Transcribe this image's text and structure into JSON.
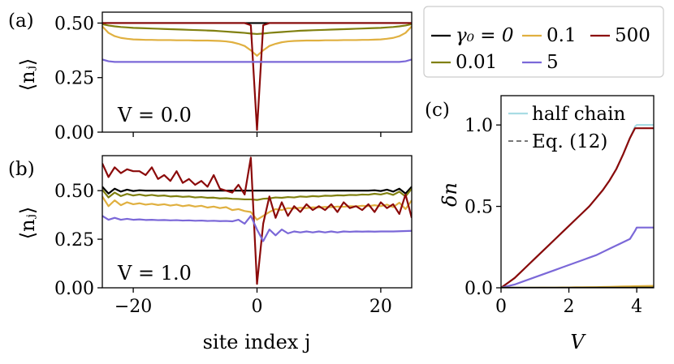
{
  "figure": {
    "legend": {
      "entries": [
        {
          "label": "γ₀ = 0",
          "color": "#000000"
        },
        {
          "label": "0.1",
          "color": "#e0b040"
        },
        {
          "label": "500",
          "color": "#8b0a0a"
        },
        {
          "label": "0.01",
          "color": "#808010"
        },
        {
          "label": "5",
          "color": "#7b68d8"
        }
      ]
    }
  },
  "chart_data": [
    {
      "id": "a",
      "type": "line",
      "panel_label": "(a)",
      "annotation": "V = 0.0",
      "ylabel": "⟨nⱼ⟩",
      "xlabel": "",
      "xlim": [
        -25,
        25
      ],
      "ylim": [
        0.0,
        0.55
      ],
      "xticks": [
        -20,
        0,
        20
      ],
      "yticks": [
        0.0,
        0.25,
        0.5
      ],
      "yticklabels": [
        "0.00",
        "0.25",
        "0.50"
      ],
      "x": [
        -25,
        -24,
        -23,
        -22,
        -21,
        -20,
        -19,
        -18,
        -17,
        -16,
        -15,
        -14,
        -13,
        -12,
        -11,
        -10,
        -9,
        -8,
        -7,
        -6,
        -5,
        -4,
        -3,
        -2,
        -1,
        0,
        1,
        2,
        3,
        4,
        5,
        6,
        7,
        8,
        9,
        10,
        11,
        12,
        13,
        14,
        15,
        16,
        17,
        18,
        19,
        20,
        21,
        22,
        23,
        24,
        25
      ],
      "series": [
        {
          "name": "γ₀ = 0",
          "color": "#000000",
          "values": [
            0.5,
            0.5,
            0.5,
            0.5,
            0.5,
            0.5,
            0.5,
            0.5,
            0.5,
            0.5,
            0.5,
            0.5,
            0.5,
            0.5,
            0.5,
            0.5,
            0.5,
            0.5,
            0.5,
            0.5,
            0.5,
            0.5,
            0.5,
            0.5,
            0.5,
            0.5,
            0.5,
            0.5,
            0.5,
            0.5,
            0.5,
            0.5,
            0.5,
            0.5,
            0.5,
            0.5,
            0.5,
            0.5,
            0.5,
            0.5,
            0.5,
            0.5,
            0.5,
            0.5,
            0.5,
            0.5,
            0.5,
            0.5,
            0.5,
            0.5,
            0.5
          ]
        },
        {
          "name": "0.01",
          "color": "#808010",
          "values": [
            0.495,
            0.489,
            0.485,
            0.482,
            0.48,
            0.478,
            0.477,
            0.476,
            0.475,
            0.474,
            0.473,
            0.472,
            0.471,
            0.47,
            0.469,
            0.468,
            0.467,
            0.466,
            0.465,
            0.463,
            0.461,
            0.459,
            0.457,
            0.455,
            0.452,
            0.45,
            0.452,
            0.455,
            0.457,
            0.459,
            0.461,
            0.463,
            0.465,
            0.466,
            0.467,
            0.468,
            0.469,
            0.47,
            0.471,
            0.472,
            0.473,
            0.474,
            0.475,
            0.476,
            0.477,
            0.478,
            0.48,
            0.482,
            0.485,
            0.489,
            0.495
          ]
        },
        {
          "name": "0.1",
          "color": "#e0b040",
          "values": [
            0.485,
            0.455,
            0.44,
            0.432,
            0.428,
            0.425,
            0.424,
            0.423,
            0.423,
            0.422,
            0.422,
            0.422,
            0.421,
            0.421,
            0.421,
            0.42,
            0.42,
            0.42,
            0.419,
            0.418,
            0.416,
            0.412,
            0.405,
            0.395,
            0.375,
            0.35,
            0.375,
            0.395,
            0.405,
            0.412,
            0.416,
            0.418,
            0.419,
            0.42,
            0.42,
            0.42,
            0.421,
            0.421,
            0.421,
            0.422,
            0.422,
            0.422,
            0.423,
            0.423,
            0.424,
            0.425,
            0.428,
            0.432,
            0.44,
            0.455,
            0.485
          ]
        },
        {
          "name": "500",
          "color": "#8b0a0a",
          "values": [
            0.5,
            0.5,
            0.5,
            0.5,
            0.5,
            0.5,
            0.5,
            0.5,
            0.5,
            0.5,
            0.5,
            0.5,
            0.5,
            0.5,
            0.5,
            0.5,
            0.5,
            0.5,
            0.5,
            0.5,
            0.5,
            0.5,
            0.5,
            0.5,
            0.49,
            0.01,
            0.49,
            0.5,
            0.5,
            0.5,
            0.5,
            0.5,
            0.5,
            0.5,
            0.5,
            0.5,
            0.5,
            0.5,
            0.5,
            0.5,
            0.5,
            0.5,
            0.5,
            0.5,
            0.5,
            0.5,
            0.5,
            0.5,
            0.5,
            0.5,
            0.5
          ]
        },
        {
          "name": "5",
          "color": "#7b68d8",
          "values": [
            0.333,
            0.325,
            0.322,
            0.322,
            0.322,
            0.322,
            0.322,
            0.322,
            0.322,
            0.322,
            0.322,
            0.322,
            0.322,
            0.322,
            0.322,
            0.322,
            0.322,
            0.322,
            0.322,
            0.322,
            0.322,
            0.322,
            0.322,
            0.322,
            0.322,
            0.322,
            0.322,
            0.322,
            0.322,
            0.322,
            0.322,
            0.322,
            0.322,
            0.322,
            0.322,
            0.322,
            0.322,
            0.322,
            0.322,
            0.322,
            0.322,
            0.322,
            0.322,
            0.322,
            0.322,
            0.322,
            0.322,
            0.322,
            0.322,
            0.325,
            0.333
          ]
        }
      ]
    },
    {
      "id": "b",
      "type": "line",
      "panel_label": "(b)",
      "annotation": "V = 1.0",
      "ylabel": "⟨nⱼ⟩",
      "xlabel": "site index j",
      "xlim": [
        -25,
        25
      ],
      "ylim": [
        0.0,
        0.68
      ],
      "xticks": [
        -20,
        0,
        20
      ],
      "xticklabels": [
        "−20",
        "0",
        "20"
      ],
      "yticks": [
        0.0,
        0.25,
        0.5
      ],
      "yticklabels": [
        "0.00",
        "0.25",
        "0.50"
      ],
      "x": [
        -25,
        -24,
        -23,
        -22,
        -21,
        -20,
        -19,
        -18,
        -17,
        -16,
        -15,
        -14,
        -13,
        -12,
        -11,
        -10,
        -9,
        -8,
        -7,
        -6,
        -5,
        -4,
        -3,
        -2,
        -1,
        0,
        1,
        2,
        3,
        4,
        5,
        6,
        7,
        8,
        9,
        10,
        11,
        12,
        13,
        14,
        15,
        16,
        17,
        18,
        19,
        20,
        21,
        22,
        23,
        24,
        25
      ],
      "series": [
        {
          "name": "γ₀ = 0",
          "color": "#000000",
          "values": [
            0.52,
            0.485,
            0.51,
            0.495,
            0.505,
            0.498,
            0.502,
            0.5,
            0.5,
            0.5,
            0.5,
            0.5,
            0.5,
            0.5,
            0.5,
            0.5,
            0.5,
            0.5,
            0.5,
            0.5,
            0.5,
            0.5,
            0.5,
            0.5,
            0.5,
            0.5,
            0.5,
            0.5,
            0.5,
            0.5,
            0.5,
            0.5,
            0.5,
            0.5,
            0.5,
            0.5,
            0.5,
            0.5,
            0.5,
            0.5,
            0.5,
            0.5,
            0.5,
            0.5,
            0.502,
            0.498,
            0.505,
            0.495,
            0.51,
            0.485,
            0.52
          ]
        },
        {
          "name": "0.01",
          "color": "#808010",
          "values": [
            0.505,
            0.465,
            0.49,
            0.472,
            0.483,
            0.475,
            0.48,
            0.474,
            0.478,
            0.473,
            0.475,
            0.47,
            0.472,
            0.468,
            0.47,
            0.465,
            0.467,
            0.463,
            0.464,
            0.46,
            0.461,
            0.458,
            0.457,
            0.455,
            0.455,
            0.452,
            0.458,
            0.46,
            0.465,
            0.463,
            0.467,
            0.465,
            0.47,
            0.468,
            0.472,
            0.47,
            0.474,
            0.473,
            0.476,
            0.475,
            0.478,
            0.477,
            0.48,
            0.479,
            0.484,
            0.48,
            0.488,
            0.478,
            0.495,
            0.47,
            0.51
          ]
        },
        {
          "name": "0.1",
          "color": "#e0b040",
          "values": [
            0.47,
            0.42,
            0.45,
            0.425,
            0.44,
            0.43,
            0.435,
            0.428,
            0.432,
            0.426,
            0.43,
            0.423,
            0.428,
            0.42,
            0.425,
            0.418,
            0.422,
            0.413,
            0.418,
            0.41,
            0.415,
            0.4,
            0.405,
            0.395,
            0.39,
            0.35,
            0.37,
            0.39,
            0.405,
            0.4,
            0.41,
            0.408,
            0.412,
            0.41,
            0.414,
            0.413,
            0.416,
            0.415,
            0.418,
            0.417,
            0.42,
            0.419,
            0.422,
            0.42,
            0.425,
            0.42,
            0.428,
            0.415,
            0.438,
            0.405,
            0.45
          ]
        },
        {
          "name": "500",
          "color": "#8b0a0a",
          "values": [
            0.64,
            0.57,
            0.62,
            0.59,
            0.61,
            0.6,
            0.6,
            0.58,
            0.62,
            0.56,
            0.58,
            0.55,
            0.6,
            0.54,
            0.56,
            0.53,
            0.55,
            0.52,
            0.58,
            0.51,
            0.5,
            0.49,
            0.53,
            0.48,
            0.67,
            0.02,
            0.33,
            0.47,
            0.36,
            0.44,
            0.37,
            0.42,
            0.39,
            0.43,
            0.4,
            0.42,
            0.4,
            0.43,
            0.39,
            0.44,
            0.41,
            0.42,
            0.4,
            0.43,
            0.39,
            0.44,
            0.41,
            0.43,
            0.38,
            0.48,
            0.36
          ]
        },
        {
          "name": "5",
          "color": "#7b68d8",
          "values": [
            0.37,
            0.35,
            0.36,
            0.35,
            0.355,
            0.35,
            0.352,
            0.349,
            0.35,
            0.348,
            0.349,
            0.347,
            0.348,
            0.346,
            0.347,
            0.345,
            0.346,
            0.344,
            0.345,
            0.343,
            0.344,
            0.342,
            0.35,
            0.33,
            0.37,
            0.3,
            0.24,
            0.3,
            0.27,
            0.3,
            0.28,
            0.29,
            0.285,
            0.29,
            0.285,
            0.29,
            0.285,
            0.29,
            0.285,
            0.29,
            0.288,
            0.29,
            0.289,
            0.29,
            0.289,
            0.29,
            0.29,
            0.29,
            0.291,
            0.292,
            0.293
          ]
        }
      ]
    },
    {
      "id": "c",
      "type": "line",
      "panel_label": "(c)",
      "ylabel": "δn",
      "xlabel": "V",
      "xlim": [
        0,
        4.5
      ],
      "ylim": [
        0.0,
        1.18
      ],
      "xticks": [
        0,
        2,
        4
      ],
      "yticks": [
        0.0,
        0.5,
        1.0
      ],
      "yticklabels": [
        "0.0",
        "0.5",
        "1.0"
      ],
      "legend": [
        {
          "label": "half chain",
          "color": "#a8dce4",
          "dash": "solid"
        },
        {
          "label": "Eq. (12)",
          "color": "#777777",
          "dash": "dashed"
        }
      ],
      "x": [
        0.0,
        0.2,
        0.4,
        0.6,
        0.8,
        1.0,
        1.2,
        1.4,
        1.6,
        1.8,
        2.0,
        2.2,
        2.4,
        2.6,
        2.8,
        3.0,
        3.2,
        3.4,
        3.6,
        3.8,
        3.95,
        4.0,
        4.5
      ],
      "series": [
        {
          "name": "half chain",
          "color": "#a8dce4",
          "dash": "solid",
          "values": [
            0.0,
            0.03,
            0.06,
            0.1,
            0.14,
            0.18,
            0.22,
            0.26,
            0.3,
            0.34,
            0.38,
            0.42,
            0.46,
            0.5,
            0.55,
            0.6,
            0.66,
            0.73,
            0.82,
            0.92,
            0.99,
            1.0,
            1.0
          ]
        },
        {
          "name": "Eq. (12)",
          "color": "#777777",
          "dash": "dashed",
          "values": [
            0.0,
            0.03,
            0.06,
            0.1,
            0.14,
            0.18,
            0.22,
            0.26,
            0.3,
            0.34,
            0.38,
            0.42,
            0.46,
            0.5,
            0.55,
            0.6,
            0.66,
            0.73,
            0.82,
            0.92,
            0.98,
            0.98,
            0.98
          ]
        },
        {
          "name": "500",
          "color": "#8b0a0a",
          "dash": "solid",
          "values": [
            0.0,
            0.03,
            0.06,
            0.1,
            0.14,
            0.18,
            0.22,
            0.26,
            0.3,
            0.34,
            0.38,
            0.42,
            0.46,
            0.5,
            0.55,
            0.6,
            0.66,
            0.73,
            0.82,
            0.92,
            0.98,
            0.98,
            0.98
          ]
        },
        {
          "name": "5",
          "color": "#7b68d8",
          "dash": "solid",
          "values": [
            0.0,
            0.01,
            0.02,
            0.035,
            0.05,
            0.065,
            0.08,
            0.095,
            0.11,
            0.125,
            0.14,
            0.155,
            0.17,
            0.185,
            0.2,
            0.22,
            0.24,
            0.26,
            0.28,
            0.3,
            0.35,
            0.37,
            0.37
          ]
        },
        {
          "name": "0.1",
          "color": "#e0b040",
          "dash": "solid",
          "values": [
            0.0,
            0.0,
            0.0,
            0.0,
            0.0,
            0.0,
            0.001,
            0.001,
            0.001,
            0.002,
            0.002,
            0.003,
            0.003,
            0.004,
            0.004,
            0.005,
            0.006,
            0.007,
            0.008,
            0.009,
            0.01,
            0.01,
            0.012
          ]
        },
        {
          "name": "0.01",
          "color": "#808010",
          "dash": "solid",
          "values": [
            0.0,
            0.0,
            0.0,
            0.0,
            0.0,
            0.0,
            0.0,
            0.0,
            0.0,
            0.0,
            0.0,
            0.0,
            0.0,
            0.0,
            0.001,
            0.001,
            0.001,
            0.001,
            0.001,
            0.001,
            0.002,
            0.002,
            0.002
          ]
        },
        {
          "name": "γ₀ = 0",
          "color": "#000000",
          "dash": "solid",
          "values": [
            0.0,
            0.0,
            0.0,
            0.0,
            0.0,
            0.0,
            0.0,
            0.0,
            0.0,
            0.0,
            0.0,
            0.0,
            0.0,
            0.0,
            0.0,
            0.0,
            0.0,
            0.0,
            0.0,
            0.0,
            0.0,
            0.0,
            0.0
          ]
        }
      ]
    }
  ]
}
